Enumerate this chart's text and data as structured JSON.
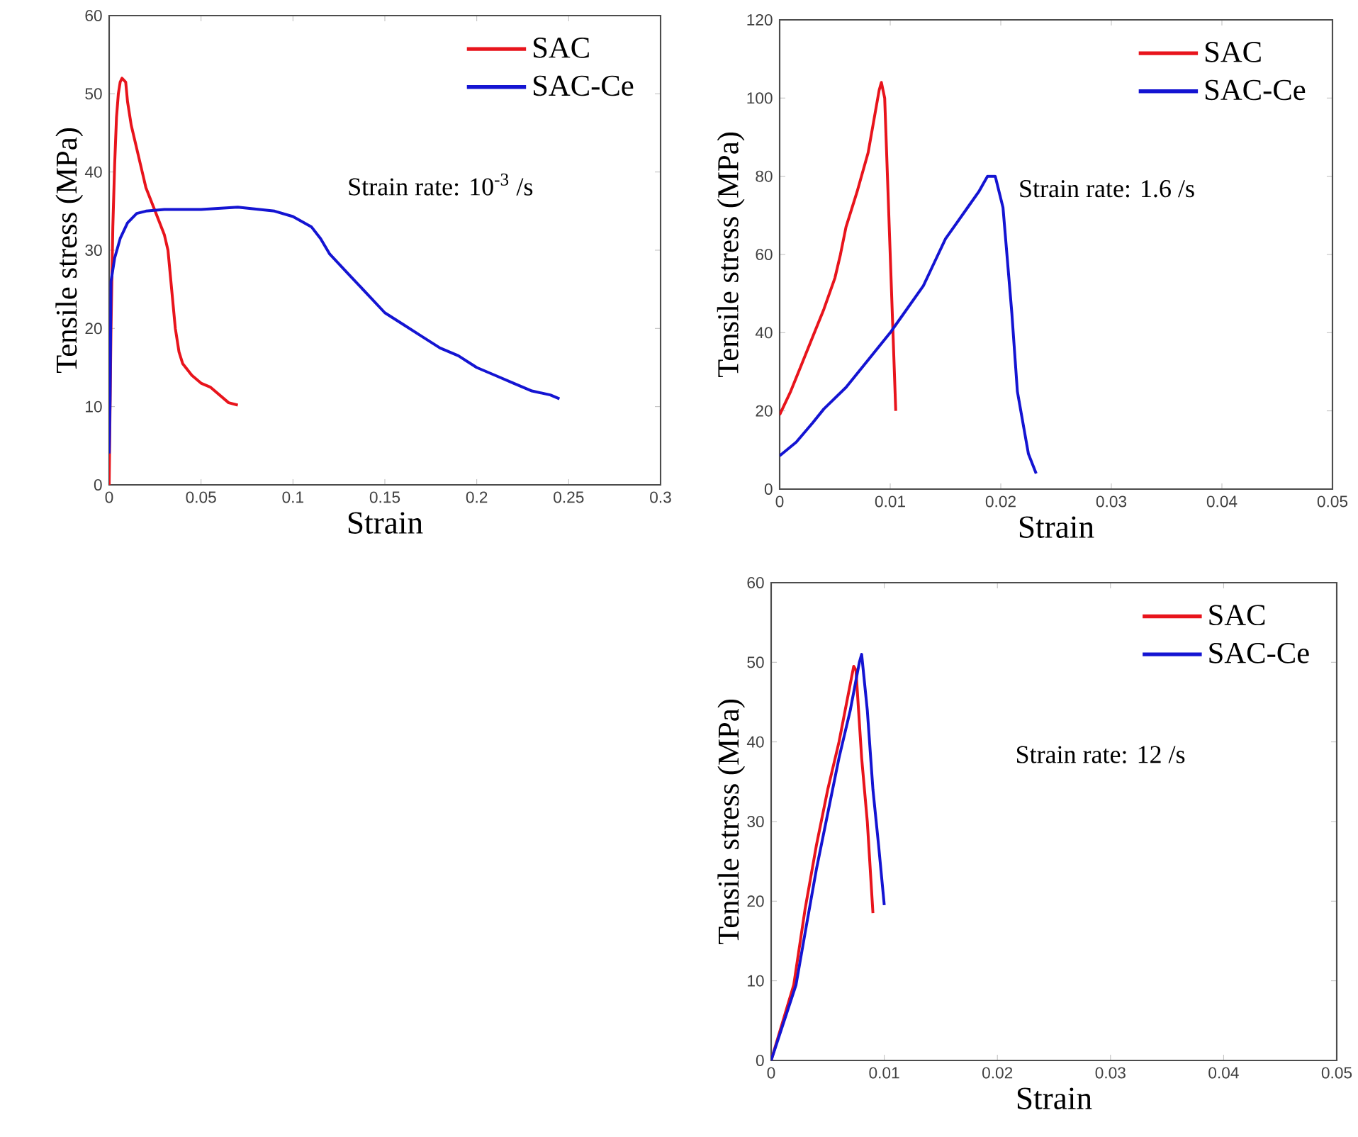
{
  "chart_data": [
    {
      "type": "line",
      "xlabel": "Strain",
      "ylabel": "Tensile stress (MPa)",
      "xlim": [
        0,
        0.3
      ],
      "ylim": [
        0,
        60
      ],
      "xticks": [
        0,
        0.05,
        0.1,
        0.15,
        0.2,
        0.25,
        0.3
      ],
      "yticks": [
        0,
        10,
        20,
        30,
        40,
        50,
        60
      ],
      "legend": "top right",
      "annotations": [
        "Strain rate: 10$^{-3}$ /s"
      ],
      "series": [
        {
          "name": "SAC",
          "color": "#e8141c",
          "x": [
            0,
            0.001,
            0.002,
            0.003,
            0.004,
            0.005,
            0.006,
            0.007,
            0.009,
            0.01,
            0.012,
            0.015,
            0.018,
            0.02,
            0.025,
            0.03,
            0.032,
            0.034,
            0.036,
            0.038,
            0.04,
            0.045,
            0.05,
            0.055,
            0.06,
            0.065,
            0.07
          ],
          "values": [
            0,
            20,
            33,
            41,
            47,
            50,
            51.5,
            52,
            51.5,
            49,
            46,
            43,
            40,
            38,
            35,
            32,
            30,
            25,
            20,
            17,
            15.5,
            14,
            13,
            12.5,
            11.5,
            10.5,
            10.2
          ]
        },
        {
          "name": "SAC-Ce",
          "color": "#1414d2",
          "x": [
            0,
            0.0005,
            0.001,
            0.003,
            0.006,
            0.01,
            0.015,
            0.02,
            0.03,
            0.05,
            0.07,
            0.09,
            0.1,
            0.11,
            0.115,
            0.12,
            0.13,
            0.14,
            0.15,
            0.16,
            0.17,
            0.18,
            0.19,
            0.2,
            0.21,
            0.22,
            0.23,
            0.24,
            0.245
          ],
          "values": [
            4,
            11,
            26,
            29,
            31.5,
            33.5,
            34.7,
            35,
            35.2,
            35.2,
            35.5,
            35,
            34.3,
            33,
            31.5,
            29.5,
            27,
            24.5,
            22,
            20.5,
            19,
            17.5,
            16.5,
            15,
            14,
            13,
            12,
            11.5,
            11
          ]
        }
      ]
    },
    {
      "type": "line",
      "xlabel": "Strain",
      "ylabel": "Tensile stress (MPa)",
      "xlim": [
        0,
        0.05
      ],
      "ylim": [
        0,
        120
      ],
      "xticks": [
        0,
        0.01,
        0.02,
        0.03,
        0.04,
        0.05
      ],
      "yticks": [
        0,
        20,
        40,
        60,
        80,
        100,
        120
      ],
      "legend": "top right",
      "annotations": [
        "Strain rate: 1.6 /s"
      ],
      "series": [
        {
          "name": "SAC",
          "color": "#e8141c",
          "x": [
            0,
            0.001,
            0.002,
            0.003,
            0.004,
            0.005,
            0.0055,
            0.006,
            0.007,
            0.008,
            0.0085,
            0.009,
            0.0092,
            0.0095,
            0.0105
          ],
          "values": [
            19,
            25,
            32,
            39,
            46,
            54,
            60,
            67,
            76,
            86,
            94,
            102,
            104,
            100,
            20
          ]
        },
        {
          "name": "SAC-Ce",
          "color": "#1414d2",
          "x": [
            0,
            0.0015,
            0.003,
            0.004,
            0.006,
            0.008,
            0.01,
            0.011,
            0.013,
            0.014,
            0.015,
            0.016,
            0.017,
            0.018,
            0.0188,
            0.0195,
            0.0202,
            0.021,
            0.0215,
            0.0225,
            0.0232
          ],
          "values": [
            8.5,
            12,
            17,
            20.5,
            26,
            33,
            40,
            44,
            52,
            58,
            64,
            68,
            72,
            76,
            80,
            80,
            72,
            45,
            25,
            9,
            4
          ]
        }
      ]
    },
    {
      "type": "line",
      "xlabel": "Strain",
      "ylabel": "Tensile stress (MPa)",
      "xlim": [
        0,
        0.05
      ],
      "ylim": [
        0,
        60
      ],
      "xticks": [
        0,
        0.01,
        0.02,
        0.03,
        0.04,
        0.05
      ],
      "yticks": [
        0,
        10,
        20,
        30,
        40,
        50,
        60
      ],
      "legend": "top right",
      "annotations": [
        "Strain rate: 12 /s"
      ],
      "series": [
        {
          "name": "SAC",
          "color": "#e8141c",
          "x": [
            0,
            0.002,
            0.003,
            0.004,
            0.005,
            0.006,
            0.0073,
            0.0075,
            0.008,
            0.0085,
            0.009
          ],
          "values": [
            0,
            9.5,
            19,
            27,
            34,
            40,
            49.5,
            49,
            38,
            30,
            18.5
          ]
        },
        {
          "name": "SAC-Ce",
          "color": "#1414d2",
          "x": [
            0,
            0.0022,
            0.003,
            0.004,
            0.005,
            0.006,
            0.007,
            0.0078,
            0.008,
            0.0085,
            0.009,
            0.0095,
            0.01
          ],
          "values": [
            0,
            9.5,
            16,
            24,
            31,
            38,
            44,
            50,
            51,
            44,
            34,
            27,
            19.5
          ]
        }
      ]
    }
  ]
}
